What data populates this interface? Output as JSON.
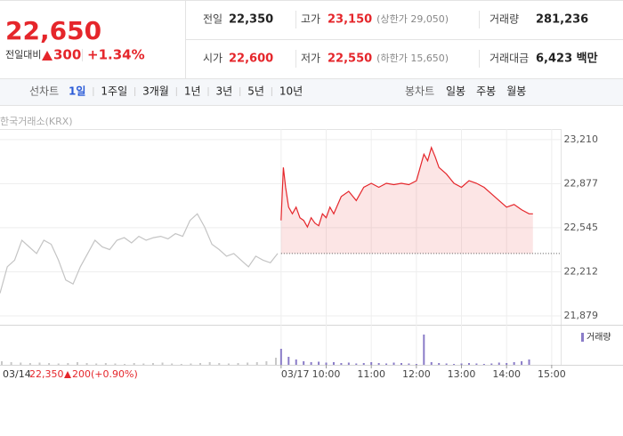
{
  "quote": {
    "price": "22,650",
    "change_label": "전일대비",
    "change": "300",
    "change_pct": "+1.34%",
    "color": "#e5262b"
  },
  "stats": [
    {
      "label": "전일",
      "value": "22,350",
      "color": "#222222"
    },
    {
      "label": "고가",
      "value": "23,150",
      "note": "(상한가 29,050)",
      "color": "#e5262b"
    },
    {
      "label": "거래량",
      "value": "281,236",
      "color": "#222222"
    },
    {
      "label": "시가",
      "value": "22,600",
      "color": "#e5262b"
    },
    {
      "label": "저가",
      "value": "22,550",
      "note": "(하한가 15,650)",
      "color": "#e5262b"
    },
    {
      "label": "거래대금",
      "value": "6,423 백만",
      "color": "#222222"
    }
  ],
  "tabs": {
    "line_label": "선차트",
    "periods": [
      "1일",
      "1주일",
      "3개월",
      "1년",
      "3년",
      "5년",
      "10년"
    ],
    "selected": 0,
    "candle_label": "봉차트",
    "candles": [
      "일봉",
      "주봉",
      "월봉"
    ]
  },
  "source": "한국거래소(KRX)",
  "prev_day": {
    "date": "03/14",
    "close": "22,350",
    "change": "200",
    "change_pct": "(+0.90%)"
  },
  "chart_data": [
    {
      "type": "line",
      "ylim": [
        21812,
        23290
      ],
      "yticks": [
        {
          "value": 23210,
          "label": "23,210"
        },
        {
          "value": 22877,
          "label": "22,877"
        },
        {
          "value": 22545,
          "label": "22,545"
        },
        {
          "value": 22212,
          "label": "22,212"
        },
        {
          "value": 21879,
          "label": "21,879"
        }
      ],
      "xlim": [
        -374,
        372
      ],
      "xticks": [
        {
          "value": 0,
          "label": "03/17"
        },
        {
          "value": 60,
          "label": "10:00"
        },
        {
          "value": 120,
          "label": "11:00"
        },
        {
          "value": 180,
          "label": "12:00"
        },
        {
          "value": 240,
          "label": "13:00"
        },
        {
          "value": 300,
          "label": "14:00"
        },
        {
          "value": 360,
          "label": "15:00"
        }
      ],
      "grid": true,
      "prev_close": 22350,
      "series": [
        {
          "color": "#c4c4c4",
          "values": [
            22050,
            22250,
            22300,
            22450,
            22400,
            22350,
            22450,
            22420,
            22300,
            22150,
            22120,
            22250,
            22350,
            22450,
            22400,
            22380,
            22450,
            22470,
            22430,
            22480,
            22450,
            22470,
            22480,
            22460,
            22500,
            22480,
            22600,
            22650,
            22550,
            22420,
            22380,
            22330,
            22350,
            22300,
            22250,
            22330,
            22300,
            22280,
            22350
          ]
        },
        {
          "color": "#e5262b",
          "x": [
            0,
            3,
            6,
            10,
            15,
            20,
            25,
            30,
            35,
            40,
            45,
            50,
            55,
            60,
            65,
            70,
            80,
            90,
            100,
            110,
            120,
            130,
            140,
            150,
            160,
            170,
            180,
            185,
            190,
            195,
            200,
            205,
            210,
            220,
            230,
            240,
            250,
            260,
            270,
            280,
            290,
            300,
            310,
            320,
            330,
            335
          ],
          "values": [
            22600,
            23000,
            22850,
            22700,
            22650,
            22700,
            22620,
            22600,
            22550,
            22620,
            22580,
            22560,
            22650,
            22620,
            22700,
            22650,
            22780,
            22820,
            22750,
            22850,
            22880,
            22850,
            22880,
            22870,
            22880,
            22870,
            22900,
            23000,
            23100,
            23050,
            23150,
            23080,
            23000,
            22950,
            22880,
            22850,
            22900,
            22880,
            22850,
            22800,
            22750,
            22700,
            22720,
            22680,
            22650,
            22650
          ]
        }
      ]
    },
    {
      "type": "bar",
      "name": "거래량",
      "ylim": [
        0,
        40000
      ],
      "series": [
        {
          "color": "#c8c8c8",
          "values": [
            4000,
            3000,
            2500,
            2000,
            2500,
            2000,
            1500,
            2000,
            3000,
            2000,
            1500,
            2000,
            1500,
            1000,
            2000,
            1500,
            2000,
            2500,
            1500,
            1000,
            1500,
            2000,
            3000,
            2000,
            1500,
            2000,
            2500,
            3000,
            4000,
            8000
          ]
        },
        {
          "color": "#8a7cc8",
          "x": [
            0,
            10,
            20,
            30,
            40,
            50,
            60,
            70,
            80,
            90,
            100,
            110,
            120,
            130,
            140,
            150,
            160,
            170,
            180,
            190,
            200,
            210,
            220,
            230,
            240,
            250,
            260,
            270,
            280,
            290,
            300,
            310,
            320,
            330
          ],
          "values": [
            18000,
            9000,
            6000,
            4000,
            3000,
            3500,
            2500,
            3000,
            2000,
            2500,
            1500,
            2000,
            3000,
            2000,
            1500,
            2500,
            2000,
            1500,
            1000,
            34000,
            3000,
            2000,
            1500,
            1000,
            1500,
            2000,
            1500,
            1000,
            1500,
            2500,
            2000,
            3000,
            4000,
            6000
          ]
        }
      ]
    }
  ]
}
